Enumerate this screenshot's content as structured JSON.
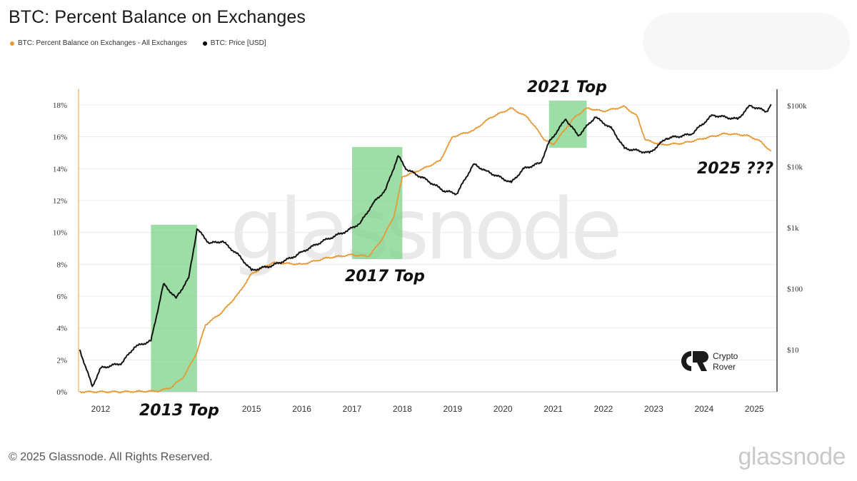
{
  "title": "BTC: Percent Balance on Exchanges",
  "legend": [
    {
      "label": "BTC: Percent Balance on Exchanges - All Exchanges",
      "color": "#e69a35"
    },
    {
      "label": "BTC: Price [USD]",
      "color": "#000000"
    }
  ],
  "footer": {
    "copyright": "© 2025 Glassnode. All Rights Reserved.",
    "logo": "glassnode"
  },
  "watermark": "glassnode",
  "brand_badge": {
    "line1": "Crypto",
    "line2": "Rover"
  },
  "chart_data": {
    "type": "line",
    "x_ticks": [
      "2012",
      "2013 Top",
      "2015",
      "2016",
      "2017",
      "2018",
      "2019",
      "2020",
      "2021",
      "2022",
      "2023",
      "2024",
      "2025"
    ],
    "y_left": {
      "ticks": [
        "0%",
        "2%",
        "4%",
        "6%",
        "8%",
        "10%",
        "12%",
        "14%",
        "16%",
        "18%"
      ],
      "range": [
        0,
        18
      ]
    },
    "y_right": {
      "scale": "log",
      "ticks": [
        "$10",
        "$100",
        "$1k",
        "$10k",
        "$100k"
      ],
      "range": [
        1,
        100000
      ]
    },
    "grid": true,
    "legend_position": "top-left",
    "series": [
      {
        "name": "BTC: Percent Balance on Exchanges - All Exchanges",
        "axis": "left",
        "color": "#e69a35",
        "points": [
          [
            "2011-08",
            0.0
          ],
          [
            "2012-06",
            0.0
          ],
          [
            "2013-03",
            0.05
          ],
          [
            "2013-06",
            0.3
          ],
          [
            "2013-09",
            1.0
          ],
          [
            "2013-12",
            2.5
          ],
          [
            "2014-02",
            4.2
          ],
          [
            "2014-06",
            5.0
          ],
          [
            "2014-10",
            6.2
          ],
          [
            "2015-01",
            7.4
          ],
          [
            "2015-06",
            8.1
          ],
          [
            "2016-01",
            8.0
          ],
          [
            "2016-07",
            8.4
          ],
          [
            "2017-01",
            8.6
          ],
          [
            "2017-05",
            8.5
          ],
          [
            "2017-08",
            9.5
          ],
          [
            "2017-11",
            11.0
          ],
          [
            "2018-01",
            13.5
          ],
          [
            "2018-06",
            14.0
          ],
          [
            "2018-10",
            14.5
          ],
          [
            "2019-01",
            16.0
          ],
          [
            "2019-06",
            16.4
          ],
          [
            "2019-10",
            17.2
          ],
          [
            "2020-03",
            17.8
          ],
          [
            "2020-07",
            17.2
          ],
          [
            "2020-11",
            15.8
          ],
          [
            "2021-01",
            15.5
          ],
          [
            "2021-06",
            17.2
          ],
          [
            "2021-09",
            17.8
          ],
          [
            "2022-01",
            17.6
          ],
          [
            "2022-06",
            17.9
          ],
          [
            "2022-09",
            17.3
          ],
          [
            "2022-11",
            15.8
          ],
          [
            "2023-03",
            15.5
          ],
          [
            "2023-08",
            15.6
          ],
          [
            "2024-01",
            15.9
          ],
          [
            "2024-06",
            16.2
          ],
          [
            "2024-11",
            16.1
          ],
          [
            "2025-02",
            15.8
          ],
          [
            "2025-05",
            15.1
          ]
        ]
      },
      {
        "name": "BTC: Price [USD]",
        "axis": "right",
        "color": "#000000",
        "points": [
          [
            "2011-08",
            10
          ],
          [
            "2011-11",
            2.5
          ],
          [
            "2012-01",
            5
          ],
          [
            "2012-06",
            6
          ],
          [
            "2012-09",
            11
          ],
          [
            "2013-01",
            14
          ],
          [
            "2013-04",
            120
          ],
          [
            "2013-07",
            70
          ],
          [
            "2013-10",
            150
          ],
          [
            "2013-12",
            950
          ],
          [
            "2014-03",
            550
          ],
          [
            "2014-06",
            600
          ],
          [
            "2014-10",
            350
          ],
          [
            "2015-01",
            200
          ],
          [
            "2015-06",
            240
          ],
          [
            "2015-11",
            330
          ],
          [
            "2016-01",
            400
          ],
          [
            "2016-06",
            600
          ],
          [
            "2016-12",
            900
          ],
          [
            "2017-03",
            1200
          ],
          [
            "2017-06",
            2500
          ],
          [
            "2017-09",
            4200
          ],
          [
            "2017-12",
            15000
          ],
          [
            "2018-02",
            9000
          ],
          [
            "2018-06",
            6500
          ],
          [
            "2018-11",
            4000
          ],
          [
            "2019-02",
            3600
          ],
          [
            "2019-06",
            11000
          ],
          [
            "2019-09",
            8500
          ],
          [
            "2020-03",
            5500
          ],
          [
            "2020-06",
            9300
          ],
          [
            "2020-10",
            11500
          ],
          [
            "2020-12",
            25000
          ],
          [
            "2021-04",
            60000
          ],
          [
            "2021-07",
            32000
          ],
          [
            "2021-11",
            65000
          ],
          [
            "2022-03",
            42000
          ],
          [
            "2022-06",
            20000
          ],
          [
            "2022-12",
            16800
          ],
          [
            "2023-04",
            29000
          ],
          [
            "2023-10",
            34000
          ],
          [
            "2024-03",
            70000
          ],
          [
            "2024-09",
            60000
          ],
          [
            "2024-12",
            100000
          ],
          [
            "2025-04",
            80000
          ],
          [
            "2025-05",
            105000
          ]
        ]
      }
    ],
    "highlights": [
      {
        "label": "2013 Top",
        "from": "2013-01",
        "to": "2013-12"
      },
      {
        "label": "2017 Top",
        "from": "2017-01",
        "to": "2018-01"
      },
      {
        "label": "2021 Top",
        "from": "2020-12",
        "to": "2021-09"
      }
    ],
    "annotations": [
      "2013 Top",
      "2017 Top",
      "2021 Top",
      "2025 ???"
    ]
  }
}
